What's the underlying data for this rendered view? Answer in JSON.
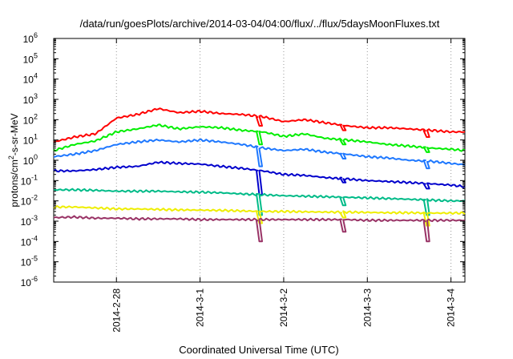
{
  "chart_data": {
    "type": "line",
    "title": "/data/run/goesPlots/archive/2014-03-04/04:00/flux/../flux/5daysMoonFluxes.txt",
    "xlabel": "Coordinated Universal Time (UTC)",
    "ylabel": {
      "prefix": "protons/cm",
      "superscript": "2",
      "suffix": "-s-sr-MeV"
    },
    "x_axis": {
      "unit": "days",
      "range": [
        "2014-02-27T06:00",
        "2014-03-04T04:00"
      ],
      "ticks": [
        "2014-2-28",
        "2014-3-1",
        "2014-3-2",
        "2014-3-3",
        "2014-3-4"
      ]
    },
    "y_axis": {
      "scale": "log",
      "base": "10",
      "exponent_labels": [
        "-6",
        "-5",
        "-4",
        "-3",
        "-2",
        "-1",
        "0",
        "1",
        "2",
        "3",
        "4",
        "5",
        "6"
      ],
      "range": [
        1e-06,
        1000000.0
      ]
    },
    "grid": "dotted",
    "x_dates": [
      "2014-02-27T06:00",
      "2014-02-27T12:00",
      "2014-02-27T18:00",
      "2014-02-28T00:00",
      "2014-02-28T06:00",
      "2014-02-28T12:00",
      "2014-02-28T18:00",
      "2014-03-01T00:00",
      "2014-03-01T06:00",
      "2014-03-01T12:00",
      "2014-03-01T18:00",
      "2014-03-02T00:00",
      "2014-03-02T06:00",
      "2014-03-02T12:00",
      "2014-03-02T18:00",
      "2014-03-03T00:00",
      "2014-03-03T06:00",
      "2014-03-03T12:00",
      "2014-03-03T18:00",
      "2014-03-04T00:00",
      "2014-03-04T04:00"
    ],
    "series": [
      {
        "color": "#ff0000",
        "values": [
          8,
          14,
          20,
          120,
          180,
          350,
          220,
          260,
          200,
          180,
          140,
          80,
          100,
          70,
          50,
          40,
          40,
          35,
          30,
          25,
          25
        ]
      },
      {
        "color": "#00ee00",
        "values": [
          3,
          6,
          9,
          25,
          35,
          55,
          35,
          45,
          40,
          30,
          25,
          15,
          20,
          12,
          10,
          8,
          6,
          5,
          4,
          3.5,
          3
        ]
      },
      {
        "color": "#1e78ff",
        "values": [
          1.5,
          2,
          3,
          6,
          8,
          10,
          8,
          10,
          8,
          6,
          4,
          3,
          3.5,
          2.5,
          2,
          1.5,
          1.3,
          1,
          0.9,
          0.7,
          0.6
        ]
      },
      {
        "color": "#0000cc",
        "values": [
          0.3,
          0.3,
          0.35,
          0.45,
          0.5,
          0.8,
          0.7,
          0.65,
          0.5,
          0.4,
          0.3,
          0.2,
          0.18,
          0.14,
          0.12,
          0.1,
          0.09,
          0.08,
          0.07,
          0.06,
          0.05
        ]
      },
      {
        "color": "#00bb88",
        "values": [
          0.035,
          0.035,
          0.033,
          0.03,
          0.03,
          0.03,
          0.028,
          0.027,
          0.025,
          0.022,
          0.02,
          0.018,
          0.017,
          0.016,
          0.015,
          0.014,
          0.013,
          0.012,
          0.011,
          0.01,
          0.01
        ]
      },
      {
        "color": "#eeee00",
        "values": [
          0.005,
          0.005,
          0.0045,
          0.004,
          0.004,
          0.0038,
          0.0036,
          0.0035,
          0.0034,
          0.0032,
          0.003,
          0.003,
          0.0029,
          0.0028,
          0.0028,
          0.0027,
          0.0026,
          0.0026,
          0.0025,
          0.0025,
          0.0025
        ]
      },
      {
        "color": "#993366",
        "values": [
          0.0015,
          0.0016,
          0.0014,
          0.0014,
          0.0013,
          0.0013,
          0.0013,
          0.0012,
          0.0012,
          0.0012,
          0.0012,
          0.0012,
          0.0012,
          0.0012,
          0.0012,
          0.0011,
          0.0011,
          0.0011,
          0.0011,
          0.0011,
          0.0011
        ]
      }
    ],
    "dips": [
      {
        "date": "2014-03-01T17:00",
        "values": [
          50,
          6,
          0.5,
          0.02,
          0.002,
          0.0008,
          0.0001
        ]
      },
      {
        "date": "2014-03-02T17:00",
        "values": [
          30,
          6,
          1.2,
          0.08,
          0.006,
          0.0015,
          0.0003
        ]
      },
      {
        "date": "2014-03-03T17:00",
        "values": [
          14,
          2.5,
          0.4,
          0.04,
          0.002,
          0.0006,
          0.0001
        ]
      }
    ]
  }
}
